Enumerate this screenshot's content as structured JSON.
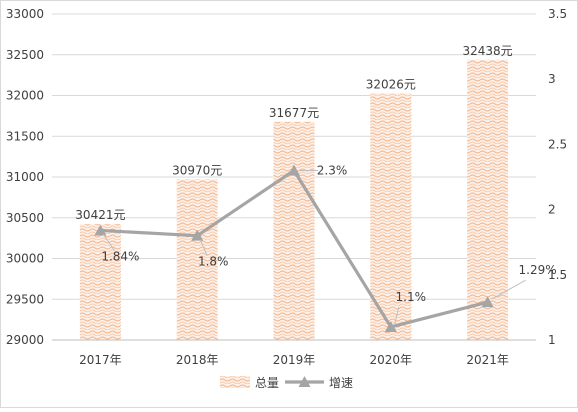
{
  "chart_data": {
    "type": "bar",
    "categories": [
      "2017年",
      "2018年",
      "2019年",
      "2020年",
      "2021年"
    ],
    "series": [
      {
        "name": "总量",
        "type": "bar",
        "axis": "left",
        "values": [
          30421,
          30970,
          31677,
          32026,
          32438
        ],
        "labels": [
          "30421元",
          "30970元",
          "31677元",
          "32026元",
          "32438元"
        ]
      },
      {
        "name": "增速",
        "type": "line",
        "axis": "right",
        "values": [
          1.84,
          1.8,
          2.3,
          1.1,
          1.29
        ],
        "labels": [
          "1.84%",
          "1.8%",
          "2.3%",
          "1.1%",
          "1.29%"
        ]
      }
    ],
    "ylim": [
      29000,
      33000
    ],
    "y_ticks": [
      "29000",
      "29500",
      "30000",
      "30500",
      "31000",
      "31500",
      "32000",
      "32500",
      "33000"
    ],
    "y2lim": [
      1,
      3.5
    ],
    "y2_ticks": [
      "1",
      "1.5",
      "2",
      "2.5",
      "3",
      "3.5"
    ],
    "grid": true,
    "legend": "bottom",
    "colors": {
      "bar": "#f8cbad",
      "line": "#a5a5a5",
      "grid": "#d9d9d9",
      "text": "#404040"
    }
  }
}
